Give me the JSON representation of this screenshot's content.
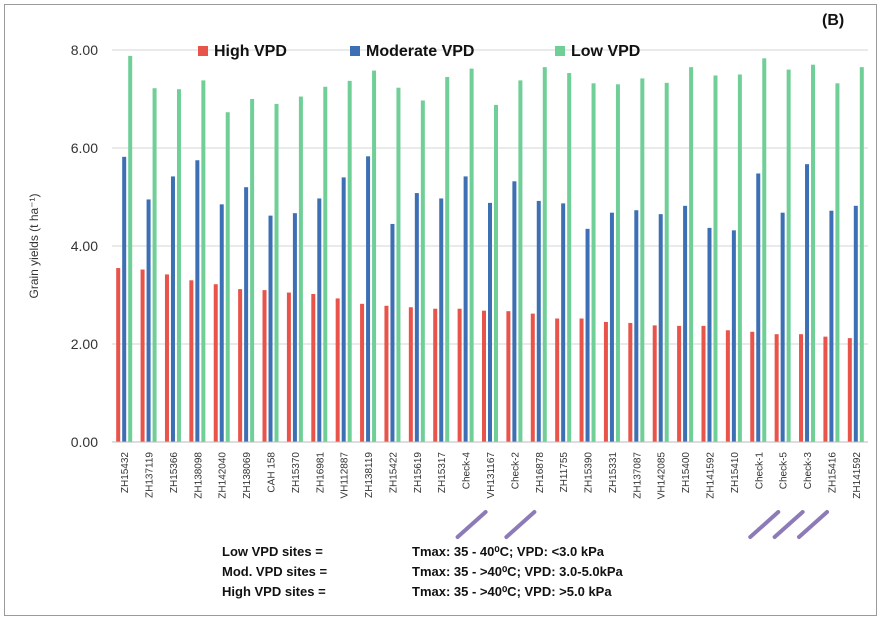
{
  "panel_label": "(B)",
  "chart_data": {
    "type": "bar",
    "title": "",
    "xlabel": "",
    "ylabel": "Grain yields (t ha⁻¹)",
    "ylim": [
      0,
      8
    ],
    "yticks": [
      "0.00",
      "2.00",
      "4.00",
      "6.00",
      "8.00"
    ],
    "ytick_values": [
      0,
      2,
      4,
      6,
      8
    ],
    "grid": true,
    "legend_position": "top",
    "categories": [
      "ZH15432",
      "ZH137119",
      "ZH15366",
      "ZH138098",
      "ZH142040",
      "ZH138069",
      "CAH 158",
      "ZH15370",
      "ZH16981",
      "VH112887",
      "ZH138119",
      "ZH15422",
      "ZH15619",
      "ZH15317",
      "Check-4",
      "VH131167",
      "Check-2",
      "ZH16878",
      "ZH11755",
      "ZH15390",
      "ZH15331",
      "ZH137087",
      "VH142085",
      "ZH15400",
      "ZH141592",
      "ZH15410",
      "Check-1",
      "Check-5",
      "Check-3",
      "ZH15416",
      "ZH141592"
    ],
    "highlighted_categories": [
      "Check-4",
      "Check-2",
      "Check-1",
      "Check-5",
      "Check-3"
    ],
    "series": [
      {
        "name": "High VPD",
        "color": "#e8534a",
        "values": [
          3.55,
          3.52,
          3.42,
          3.3,
          3.22,
          3.12,
          3.1,
          3.05,
          3.02,
          2.93,
          2.82,
          2.78,
          2.75,
          2.72,
          2.72,
          2.68,
          2.67,
          2.62,
          2.52,
          2.52,
          2.45,
          2.43,
          2.38,
          2.37,
          2.37,
          2.28,
          2.25,
          2.2,
          2.2,
          2.15,
          2.12
        ]
      },
      {
        "name": "Moderate VPD",
        "color": "#3c6fb3",
        "values": [
          5.82,
          4.95,
          5.42,
          5.75,
          4.85,
          5.2,
          4.62,
          4.67,
          4.97,
          5.4,
          5.83,
          4.45,
          5.08,
          4.97,
          5.42,
          4.88,
          5.32,
          4.92,
          4.87,
          4.35,
          4.68,
          4.73,
          4.65,
          4.82,
          4.37,
          4.32,
          5.48,
          4.68,
          5.67,
          4.72,
          4.82
        ]
      },
      {
        "name": "Low VPD",
        "color": "#6fcf97",
        "values": [
          7.88,
          7.22,
          7.2,
          7.38,
          6.73,
          7.0,
          6.9,
          7.05,
          7.25,
          7.37,
          7.58,
          7.23,
          6.97,
          7.45,
          7.62,
          6.88,
          7.38,
          7.65,
          7.53,
          7.32,
          7.3,
          7.42,
          7.33,
          7.65,
          7.48,
          7.5,
          7.83,
          7.6,
          7.7,
          7.32,
          7.65
        ]
      }
    ]
  },
  "notes": [
    {
      "label": "Low   VPD sites =",
      "value": "Tmax: 35 - 40⁰C; VPD: <3.0 kPa"
    },
    {
      "label": "Mod. VPD sites =",
      "value": "Tmax: 35 - >40⁰C; VPD: 3.0-5.0kPa"
    },
    {
      "label": "High  VPD sites  =",
      "value": "Tmax: 35 - >40⁰C; VPD: >5.0 kPa"
    }
  ]
}
